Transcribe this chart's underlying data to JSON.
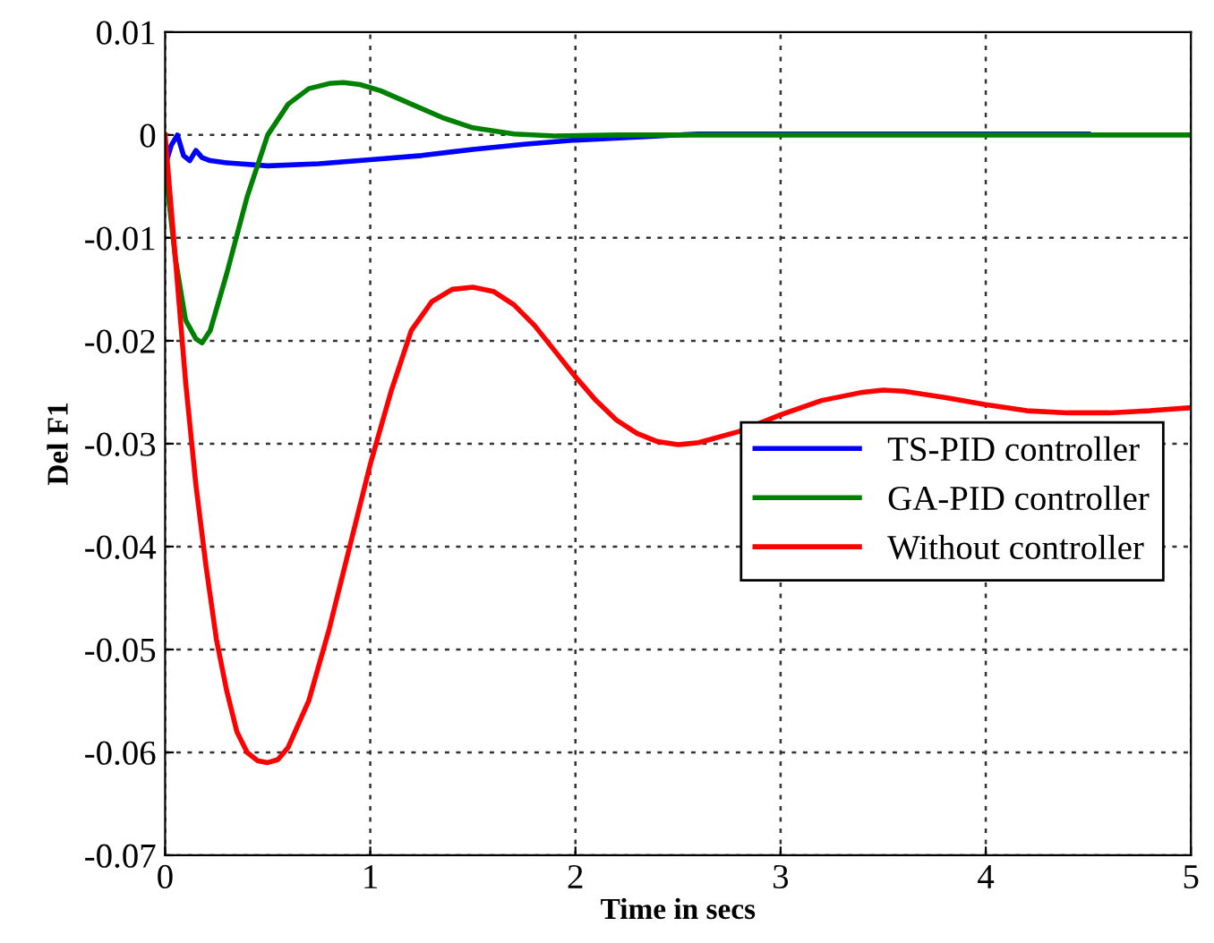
{
  "chart_data": {
    "type": "line",
    "xlabel": "Time in secs",
    "ylabel": "Del F1",
    "xlim": [
      0,
      5
    ],
    "ylim": [
      -0.07,
      0.01
    ],
    "xticks": [
      0,
      1,
      2,
      3,
      4,
      5
    ],
    "yticks": [
      -0.07,
      -0.06,
      -0.05,
      -0.04,
      -0.03,
      -0.02,
      -0.01,
      0,
      0.01
    ],
    "grid": true,
    "legend": "right",
    "line_style": "solid",
    "series": [
      {
        "name": "TS-PID controller",
        "color": "#0000ff",
        "x": [
          0,
          0.03,
          0.06,
          0.09,
          0.12,
          0.15,
          0.18,
          0.22,
          0.3,
          0.5,
          0.75,
          1.0,
          1.25,
          1.5,
          1.75,
          2.0,
          2.3,
          2.6,
          3.0,
          3.5,
          4.0,
          4.5
        ],
        "values": [
          -0.003,
          -0.001,
          0.0,
          -0.002,
          -0.0025,
          -0.0015,
          -0.0022,
          -0.0025,
          -0.0027,
          -0.003,
          -0.0028,
          -0.0024,
          -0.002,
          -0.0014,
          -0.0009,
          -0.0005,
          -0.0002,
          0.0001,
          0.0001,
          0.0001,
          0.0001,
          0.0001
        ]
      },
      {
        "name": "GA-PID controller",
        "color": "#008000",
        "x": [
          0,
          0.05,
          0.1,
          0.15,
          0.18,
          0.22,
          0.3,
          0.4,
          0.5,
          0.6,
          0.7,
          0.8,
          0.87,
          0.95,
          1.05,
          1.2,
          1.35,
          1.5,
          1.7,
          1.9,
          2.2,
          3.0,
          4.0,
          5.0
        ],
        "values": [
          -0.003,
          -0.012,
          -0.018,
          -0.0198,
          -0.0202,
          -0.019,
          -0.0135,
          -0.006,
          0.0,
          0.003,
          0.0045,
          0.005,
          0.0051,
          0.0049,
          0.0043,
          0.003,
          0.0017,
          0.0007,
          0.0001,
          -0.0001,
          0.0,
          0.0,
          0.0,
          0.0
        ]
      },
      {
        "name": "Without controller",
        "color": "#ff0000",
        "x": [
          0,
          0.05,
          0.1,
          0.15,
          0.2,
          0.25,
          0.3,
          0.35,
          0.4,
          0.45,
          0.5,
          0.55,
          0.6,
          0.7,
          0.8,
          0.9,
          1.0,
          1.1,
          1.2,
          1.3,
          1.4,
          1.5,
          1.6,
          1.7,
          1.8,
          1.9,
          2.0,
          2.1,
          2.2,
          2.3,
          2.4,
          2.5,
          2.6,
          2.8,
          3.0,
          3.2,
          3.4,
          3.5,
          3.6,
          3.8,
          4.0,
          4.2,
          4.4,
          4.6,
          4.8,
          5.0
        ],
        "values": [
          0,
          -0.012,
          -0.024,
          -0.034,
          -0.042,
          -0.049,
          -0.054,
          -0.058,
          -0.06,
          -0.0608,
          -0.061,
          -0.0607,
          -0.0595,
          -0.055,
          -0.048,
          -0.04,
          -0.032,
          -0.025,
          -0.019,
          -0.0162,
          -0.015,
          -0.0148,
          -0.0152,
          -0.0165,
          -0.0185,
          -0.021,
          -0.0235,
          -0.0258,
          -0.0277,
          -0.029,
          -0.0298,
          -0.0301,
          -0.0299,
          -0.0288,
          -0.0272,
          -0.0258,
          -0.025,
          -0.0248,
          -0.0249,
          -0.0255,
          -0.0262,
          -0.0268,
          -0.027,
          -0.027,
          -0.0268,
          -0.0265
        ]
      }
    ]
  }
}
